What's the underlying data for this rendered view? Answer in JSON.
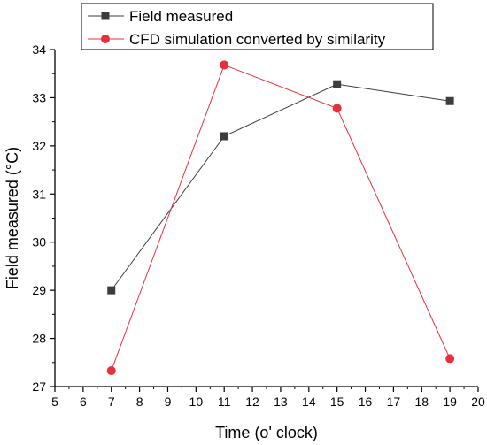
{
  "chart_data": {
    "type": "line",
    "xlabel": "Time (o' clock)",
    "ylabel": "Field measured (°C)",
    "xlim": [
      5,
      20
    ],
    "ylim": [
      27,
      34
    ],
    "xticks": [
      "5",
      "6",
      "7",
      "8",
      "9",
      "10",
      "11",
      "12",
      "13",
      "14",
      "15",
      "16",
      "17",
      "18",
      "19",
      "20"
    ],
    "yticks": [
      "27",
      "28",
      "29",
      "30",
      "31",
      "32",
      "33",
      "34"
    ],
    "grid": false,
    "legend_position": "top",
    "series": [
      {
        "name": "Field measured",
        "marker": "square",
        "color": "#3d3d3d",
        "x": [
          7,
          11,
          15,
          19
        ],
        "y": [
          29.0,
          32.2,
          33.28,
          32.93
        ]
      },
      {
        "name": "CFD simulation converted by similarity",
        "marker": "circle",
        "color": "#e8303a",
        "x": [
          7,
          11,
          15,
          19
        ],
        "y": [
          27.33,
          33.68,
          32.78,
          27.58
        ]
      }
    ]
  }
}
